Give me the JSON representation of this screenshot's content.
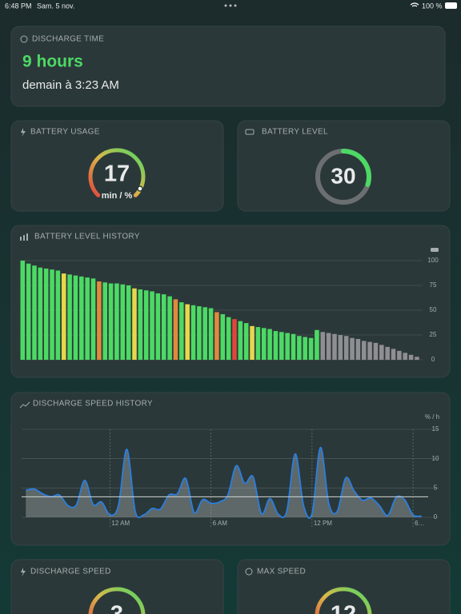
{
  "status_bar": {
    "time": "6:48 PM",
    "date": "Sam. 5 nov.",
    "battery": "100 %"
  },
  "discharge_time": {
    "title": "DISCHARGE TIME",
    "value": "9 hours",
    "subtitle": "demain à 3:23 AM"
  },
  "battery_usage": {
    "title": "BATTERY USAGE",
    "value": 17,
    "unit": "min / %"
  },
  "battery_level": {
    "title": "BATTERY LEVEL",
    "value": 30,
    "range": [
      0,
      100
    ],
    "color": "#4cd964"
  },
  "discharge_speed": {
    "title": "DISCHARGE SPEED",
    "value": 3
  },
  "max_speed": {
    "title": "MAX SPEED",
    "value": 12
  },
  "chart_data": [
    {
      "type": "bar",
      "title": "BATTERY LEVEL HISTORY",
      "values": [
        100,
        97,
        95,
        93,
        92,
        91,
        90,
        87,
        86,
        85,
        84,
        83,
        82,
        79,
        78,
        77,
        77,
        76,
        75,
        72,
        71,
        70,
        69,
        67,
        66,
        64,
        61,
        58,
        56,
        55,
        54,
        53,
        52,
        48,
        46,
        43,
        41,
        39,
        37,
        34,
        33,
        32,
        31,
        29,
        28,
        27,
        26,
        24,
        23,
        22,
        30,
        28,
        27,
        26,
        25,
        24,
        22,
        21,
        19,
        18,
        17,
        15,
        13,
        11,
        9,
        7,
        5,
        3
      ],
      "colors": [
        "#4cd964",
        "#4cd964",
        "#4cd964",
        "#4cd964",
        "#4cd964",
        "#4cd964",
        "#4cd964",
        "#e6d84a",
        "#4cd964",
        "#4cd964",
        "#4cd964",
        "#4cd964",
        "#4cd964",
        "#e08a3c",
        "#4cd964",
        "#4cd964",
        "#4cd964",
        "#4cd964",
        "#4cd964",
        "#e6d84a",
        "#4cd964",
        "#4cd964",
        "#4cd964",
        "#4cd964",
        "#4cd964",
        "#4cd964",
        "#e08a3c",
        "#4cd964",
        "#e6d84a",
        "#4cd964",
        "#4cd964",
        "#4cd964",
        "#4cd964",
        "#e08a3c",
        "#4cd964",
        "#4cd964",
        "#e0463c",
        "#4cd964",
        "#4cd964",
        "#e6d84a",
        "#4cd964",
        "#4cd964",
        "#4cd964",
        "#4cd964",
        "#4cd964",
        "#4cd964",
        "#4cd964",
        "#4cd964",
        "#4cd964",
        "#4cd964",
        "#4cd964",
        "#8e8e93",
        "#8e8e93",
        "#8e8e93",
        "#8e8e93",
        "#8e8e93",
        "#8e8e93",
        "#8e8e93",
        "#8e8e93",
        "#8e8e93",
        "#8e8e93",
        "#8e8e93",
        "#8e8e93",
        "#8e8e93",
        "#8e8e93",
        "#8e8e93",
        "#8e8e93",
        "#8e8e93"
      ],
      "ylim": [
        0,
        100
      ],
      "yticks": [
        0,
        25,
        50,
        75,
        100
      ],
      "grid": true
    },
    {
      "type": "area",
      "title": "DISCHARGE SPEED HISTORY",
      "y_label": "% / h",
      "x": [
        -5,
        -4.5,
        -4,
        -3.5,
        -3,
        -2.5,
        -2,
        -1.5,
        -1,
        -0.5,
        0,
        0.5,
        1,
        1.5,
        2,
        2.5,
        3,
        3.5,
        4,
        4.5,
        5,
        5.5,
        6,
        6.5,
        7,
        7.5,
        8,
        8.5,
        9,
        9.5,
        10,
        10.5,
        11,
        11.5,
        12,
        12.5,
        13,
        13.5,
        14,
        14.5,
        15,
        15.5,
        16,
        16.5,
        17,
        17.5,
        18,
        18.5
      ],
      "values": [
        4.6,
        4.8,
        4.0,
        3.5,
        3.8,
        2.0,
        2.1,
        6.3,
        2.2,
        2.6,
        0.4,
        2.0,
        11.6,
        1.0,
        0.4,
        1.5,
        1.4,
        3.8,
        4.0,
        6.6,
        0.8,
        3.0,
        2.4,
        2.6,
        3.8,
        8.8,
        5.8,
        6.9,
        0.6,
        3.2,
        0.5,
        1.0,
        10.8,
        2.0,
        0.6,
        11.9,
        2.3,
        1.0,
        6.7,
        4.5,
        2.9,
        3.3,
        2.0,
        0.3,
        3.4,
        3.0,
        0.4,
        0.2
      ],
      "color": "#2a7fe0",
      "reference_line": 3.5,
      "xlim": [
        -5.25,
        18.9
      ],
      "xticks": [
        {
          "value": 0,
          "label": "12 AM"
        },
        {
          "value": 6,
          "label": "6 AM"
        },
        {
          "value": 12,
          "label": "12 PM"
        },
        {
          "value": 18,
          "label": "6…"
        }
      ],
      "ylim": [
        0,
        15
      ],
      "yticks": [
        0,
        5,
        10,
        15
      ],
      "grid": true
    }
  ]
}
